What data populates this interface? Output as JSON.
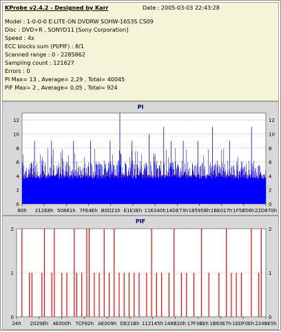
{
  "header": {
    "title": "KProbe v2.4.2 - Designed by Karr",
    "date": "Date : 2005-03-03 22:43:28"
  },
  "info_lines": [
    "Model : 1-0-0-0 E:LITE-ON DVDRW SOHW-1653S CS09",
    "Disc : DVD+R , SONYD11 [Sony Corporation]",
    "Speed : 4x",
    "ECC blocks sum (PI/PIF) : 8/1",
    "Scanned range : 0 - 2285862",
    "Sampling count : 121627",
    "Errors : 0",
    "PI Max= 13 , Average= 2,29 , Total= 40045",
    "PIF Max= 2 , Average= 0,05 , Total= 924"
  ],
  "colors": {
    "pi_bars": "#0000ff",
    "pif_bars": "#ff0000",
    "plot_bg": "#ffffff",
    "panel_bg": "#d8d8d8",
    "info_bg": "#f5f4d8",
    "threshold_line": "#ff0000"
  },
  "chart_data": [
    {
      "type": "bar",
      "title": "PI",
      "xlabel": "",
      "ylabel": "",
      "ylim": [
        0,
        13
      ],
      "yticks": [
        0,
        2,
        4,
        6,
        8,
        10,
        12
      ],
      "x_tick_labels": [
        "80h",
        "212E8h",
        "50861h",
        "7FE4Eh",
        "B0D21h",
        "E1E3Eh",
        "116340h",
        "14DE73h",
        "18595Bh",
        "1BE017h",
        "1F5B56h",
        "22D870h"
      ],
      "grid": true,
      "threshold": 4,
      "peaks": [
        {
          "pos": 0.05,
          "value": 9
        },
        {
          "pos": 0.12,
          "value": 9
        },
        {
          "pos": 0.21,
          "value": 9
        },
        {
          "pos": 0.28,
          "value": 9
        },
        {
          "pos": 0.36,
          "value": 9
        },
        {
          "pos": 0.4,
          "value": 13
        },
        {
          "pos": 0.45,
          "value": 9
        },
        {
          "pos": 0.52,
          "value": 10
        },
        {
          "pos": 0.58,
          "value": 11
        },
        {
          "pos": 0.61,
          "value": 9
        },
        {
          "pos": 0.66,
          "value": 9
        },
        {
          "pos": 0.72,
          "value": 9
        },
        {
          "pos": 0.78,
          "value": 11
        },
        {
          "pos": 0.85,
          "value": 9
        },
        {
          "pos": 0.94,
          "value": 11
        }
      ]
    },
    {
      "type": "bar",
      "title": "PIF",
      "xlabel": "",
      "ylabel": "",
      "ylim": [
        0,
        2
      ],
      "yticks": [
        0,
        1,
        2
      ],
      "x_tick_labels": [
        "24h",
        "2029Eh",
        "4E000h",
        "7CF82h",
        "AE009h",
        "DE21Bh",
        "112145h",
        "148B20h",
        "17F3BEh",
        "1B63E7h",
        "1EDF0Eh",
        "224BE5h"
      ],
      "grid": true,
      "threshold": 1,
      "events": [
        {
          "pos": 0.02,
          "value": 2
        },
        {
          "pos": 0.05,
          "value": 1
        },
        {
          "pos": 0.06,
          "value": 1
        },
        {
          "pos": 0.1,
          "value": 1
        },
        {
          "pos": 0.11,
          "value": 2
        },
        {
          "pos": 0.14,
          "value": 1
        },
        {
          "pos": 0.15,
          "value": 2
        },
        {
          "pos": 0.18,
          "value": 1
        },
        {
          "pos": 0.2,
          "value": 1
        },
        {
          "pos": 0.23,
          "value": 2
        },
        {
          "pos": 0.24,
          "value": 1
        },
        {
          "pos": 0.26,
          "value": 1
        },
        {
          "pos": 0.28,
          "value": 2
        },
        {
          "pos": 0.29,
          "value": 2
        },
        {
          "pos": 0.31,
          "value": 1
        },
        {
          "pos": 0.33,
          "value": 1
        },
        {
          "pos": 0.35,
          "value": 2
        },
        {
          "pos": 0.37,
          "value": 1
        },
        {
          "pos": 0.39,
          "value": 2
        },
        {
          "pos": 0.41,
          "value": 1
        },
        {
          "pos": 0.43,
          "value": 1
        },
        {
          "pos": 0.45,
          "value": 1
        },
        {
          "pos": 0.47,
          "value": 1
        },
        {
          "pos": 0.49,
          "value": 1
        },
        {
          "pos": 0.52,
          "value": 1
        },
        {
          "pos": 0.54,
          "value": 2
        },
        {
          "pos": 0.56,
          "value": 1
        },
        {
          "pos": 0.58,
          "value": 1
        },
        {
          "pos": 0.61,
          "value": 1
        },
        {
          "pos": 0.63,
          "value": 2
        },
        {
          "pos": 0.66,
          "value": 1
        },
        {
          "pos": 0.68,
          "value": 1
        },
        {
          "pos": 0.71,
          "value": 1
        },
        {
          "pos": 0.74,
          "value": 2
        },
        {
          "pos": 0.77,
          "value": 1
        },
        {
          "pos": 0.81,
          "value": 1
        },
        {
          "pos": 0.84,
          "value": 2
        },
        {
          "pos": 0.86,
          "value": 1
        },
        {
          "pos": 0.88,
          "value": 1
        },
        {
          "pos": 0.9,
          "value": 1
        },
        {
          "pos": 0.94,
          "value": 2
        },
        {
          "pos": 0.97,
          "value": 1
        },
        {
          "pos": 0.98,
          "value": 2
        }
      ]
    }
  ]
}
